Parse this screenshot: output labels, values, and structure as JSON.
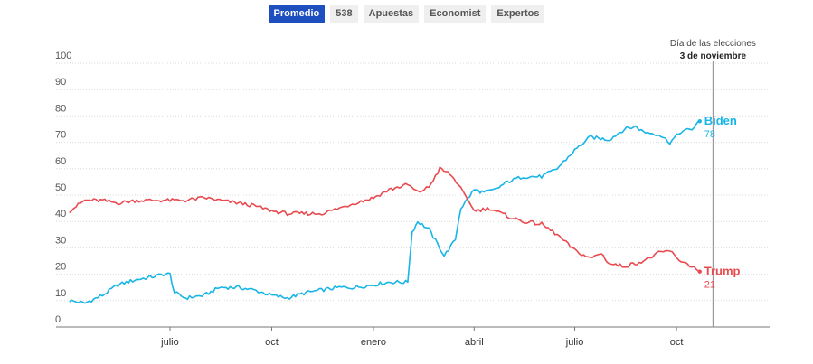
{
  "tabs": [
    {
      "label": "Promedio",
      "active": true
    },
    {
      "label": "538",
      "active": false
    },
    {
      "label": "Apuestas",
      "active": false
    },
    {
      "label": "Economist",
      "active": false
    },
    {
      "label": "Expertos",
      "active": false
    }
  ],
  "annotation": {
    "line1": "Día de las elecciones",
    "line2": "3 de noviembre",
    "date": "2020-11-03"
  },
  "colors": {
    "biden": "#19b5e6",
    "trump": "#e84a4f",
    "tab_active": "#1d4fbf"
  },
  "chart_data": {
    "type": "line",
    "title": "",
    "xlabel": "",
    "ylabel": "",
    "ylim": [
      0,
      100
    ],
    "yticks": [
      0,
      10,
      20,
      30,
      40,
      50,
      60,
      70,
      80,
      90,
      100
    ],
    "grid": true,
    "xlim": [
      "2019-03-20",
      "2020-12-25"
    ],
    "xticks": [
      {
        "label": "julio",
        "date": "2019-07-01"
      },
      {
        "label": "oct",
        "date": "2019-10-01"
      },
      {
        "label": "enero",
        "date": "2020-01-01"
      },
      {
        "label": "abril",
        "date": "2020-04-01"
      },
      {
        "label": "julio",
        "date": "2020-07-01"
      },
      {
        "label": "oct",
        "date": "2020-10-01"
      }
    ],
    "series": [
      {
        "name": "Biden",
        "color": "#19b5e6",
        "end_label": "78",
        "points": [
          [
            "2019-04-01",
            10
          ],
          [
            "2019-04-15",
            9
          ],
          [
            "2019-05-01",
            12
          ],
          [
            "2019-05-15",
            16
          ],
          [
            "2019-06-01",
            18
          ],
          [
            "2019-06-15",
            19
          ],
          [
            "2019-06-25",
            20
          ],
          [
            "2019-07-01",
            20
          ],
          [
            "2019-07-05",
            13
          ],
          [
            "2019-07-15",
            11
          ],
          [
            "2019-08-01",
            12
          ],
          [
            "2019-08-15",
            15
          ],
          [
            "2019-09-01",
            15
          ],
          [
            "2019-09-15",
            14
          ],
          [
            "2019-10-01",
            12
          ],
          [
            "2019-10-15",
            11
          ],
          [
            "2019-11-01",
            13
          ],
          [
            "2019-11-15",
            14
          ],
          [
            "2019-12-01",
            15
          ],
          [
            "2019-12-15",
            15
          ],
          [
            "2020-01-01",
            16
          ],
          [
            "2020-01-15",
            17
          ],
          [
            "2020-02-01",
            17
          ],
          [
            "2020-02-05",
            36
          ],
          [
            "2020-02-10",
            40
          ],
          [
            "2020-02-20",
            37
          ],
          [
            "2020-03-01",
            30
          ],
          [
            "2020-03-05",
            27
          ],
          [
            "2020-03-15",
            33
          ],
          [
            "2020-03-20",
            45
          ],
          [
            "2020-04-01",
            52
          ],
          [
            "2020-04-10",
            51
          ],
          [
            "2020-04-20",
            52
          ],
          [
            "2020-05-01",
            55
          ],
          [
            "2020-05-15",
            57
          ],
          [
            "2020-06-01",
            57
          ],
          [
            "2020-06-15",
            60
          ],
          [
            "2020-07-01",
            67
          ],
          [
            "2020-07-15",
            72
          ],
          [
            "2020-08-01",
            71
          ],
          [
            "2020-08-15",
            75
          ],
          [
            "2020-08-25",
            76
          ],
          [
            "2020-09-01",
            74
          ],
          [
            "2020-09-15",
            73
          ],
          [
            "2020-09-25",
            70
          ],
          [
            "2020-10-05",
            74
          ],
          [
            "2020-10-15",
            75
          ],
          [
            "2020-10-22",
            78
          ]
        ]
      },
      {
        "name": "Trump",
        "color": "#e84a4f",
        "end_label": "21",
        "points": [
          [
            "2019-04-01",
            44
          ],
          [
            "2019-04-15",
            48
          ],
          [
            "2019-05-01",
            48
          ],
          [
            "2019-05-15",
            47
          ],
          [
            "2019-06-01",
            48
          ],
          [
            "2019-06-15",
            48
          ],
          [
            "2019-07-01",
            48
          ],
          [
            "2019-07-15",
            48
          ],
          [
            "2019-08-01",
            49
          ],
          [
            "2019-08-15",
            48
          ],
          [
            "2019-09-01",
            47
          ],
          [
            "2019-09-15",
            46
          ],
          [
            "2019-10-01",
            44
          ],
          [
            "2019-10-15",
            43
          ],
          [
            "2019-11-01",
            43
          ],
          [
            "2019-11-15",
            43
          ],
          [
            "2019-12-01",
            45
          ],
          [
            "2019-12-15",
            47
          ],
          [
            "2020-01-01",
            49
          ],
          [
            "2020-01-15",
            52
          ],
          [
            "2020-02-01",
            54
          ],
          [
            "2020-02-10",
            51
          ],
          [
            "2020-02-20",
            53
          ],
          [
            "2020-03-01",
            60
          ],
          [
            "2020-03-10",
            58
          ],
          [
            "2020-03-20",
            53
          ],
          [
            "2020-04-01",
            44
          ],
          [
            "2020-04-15",
            45
          ],
          [
            "2020-05-01",
            42
          ],
          [
            "2020-05-15",
            40
          ],
          [
            "2020-06-01",
            39
          ],
          [
            "2020-06-15",
            35
          ],
          [
            "2020-07-01",
            29
          ],
          [
            "2020-07-15",
            26
          ],
          [
            "2020-07-25",
            28
          ],
          [
            "2020-08-01",
            24
          ],
          [
            "2020-08-15",
            23
          ],
          [
            "2020-09-01",
            25
          ],
          [
            "2020-09-15",
            28
          ],
          [
            "2020-09-25",
            29
          ],
          [
            "2020-10-01",
            26
          ],
          [
            "2020-10-15",
            23
          ],
          [
            "2020-10-22",
            21
          ]
        ]
      }
    ]
  }
}
